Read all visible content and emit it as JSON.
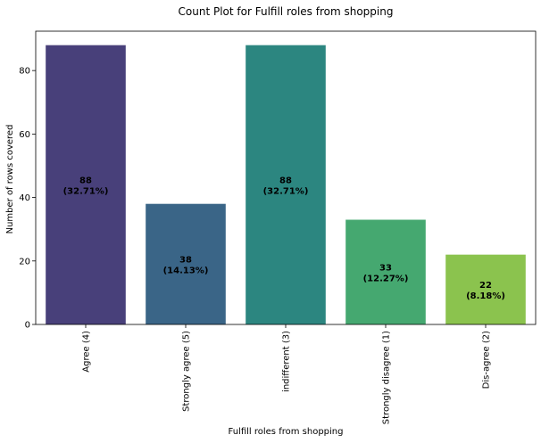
{
  "chart_data": {
    "type": "bar",
    "title": "Count Plot for Fulfill roles from shopping",
    "xlabel": "Fulfill roles from shopping",
    "ylabel": "Number of rows covered",
    "categories": [
      "Agree (4)",
      "Strongly agree (5)",
      "indifferent (3)",
      "Strongly disagree (1)",
      "Dis-agree (2)"
    ],
    "values": [
      88,
      38,
      88,
      33,
      22
    ],
    "percent_labels": [
      "(32.71%)",
      "(14.13%)",
      "(32.71%)",
      "(12.27%)",
      "(8.18%)"
    ],
    "colors": [
      "#48407a",
      "#3a6587",
      "#2c8680",
      "#45a870",
      "#8bc34e"
    ],
    "ylim": [
      0,
      92.4
    ],
    "yticks": [
      0,
      20,
      40,
      60,
      80
    ],
    "grid": false,
    "legend": "none"
  }
}
